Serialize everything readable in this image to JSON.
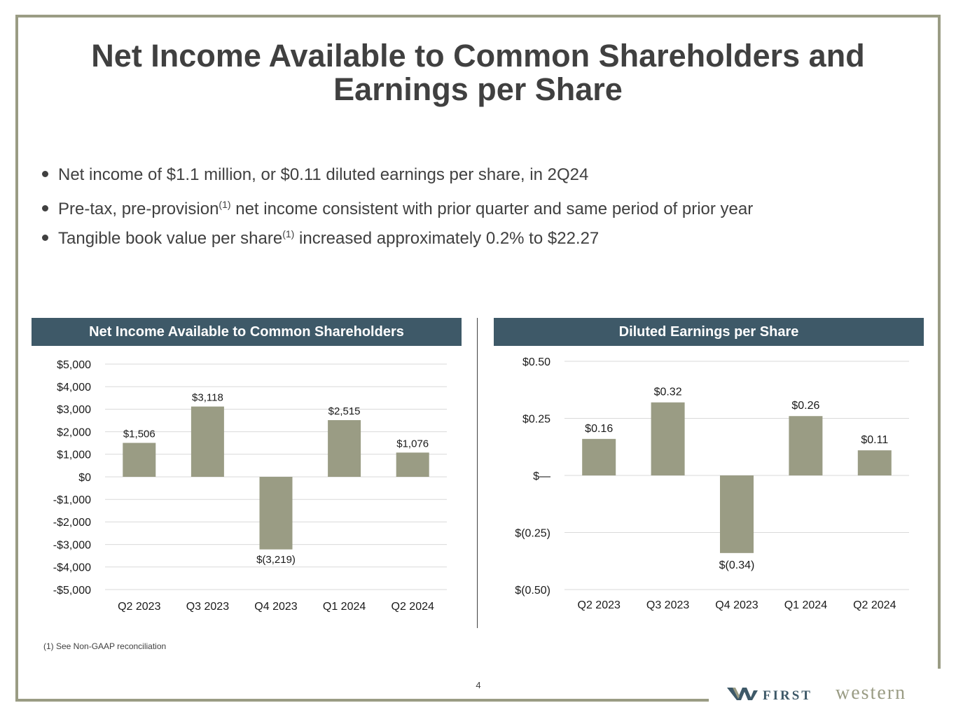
{
  "title": {
    "line1": "Net Income Available to Common Shareholders and",
    "line2": "Earnings per Share"
  },
  "bullets": [
    {
      "text": "Net income of $1.1 million, or $0.11 diluted earnings per share, in 2Q24"
    },
    {
      "pre": "Pre-tax, pre-provision",
      "sup": "(1)",
      "post": " net income consistent with prior quarter and same period of prior year"
    },
    {
      "pre": "Tangible book value per share",
      "sup": "(1)",
      "post": " increased approximately 0.2% to $22.27"
    }
  ],
  "colors": {
    "bar": "#9a9c84",
    "header": "#3e5968",
    "frame": "#9a9c84",
    "grid": "#d9d9d9",
    "text": "#404040"
  },
  "chart_data": [
    {
      "type": "bar",
      "title": "Net Income Available to Common Shareholders",
      "categories": [
        "Q2 2023",
        "Q3 2023",
        "Q4 2023",
        "Q1 2024",
        "Q2 2024"
      ],
      "values": [
        1506,
        3118,
        -3219,
        2515,
        1076
      ],
      "data_labels": [
        "$1,506",
        "$3,118",
        "$(3,219)",
        "$2,515",
        "$1,076"
      ],
      "ylim": [
        -5000,
        5000
      ],
      "yticks": [
        5000,
        4000,
        3000,
        2000,
        1000,
        0,
        -1000,
        -2000,
        -3000,
        -4000,
        -5000
      ],
      "ytick_labels": [
        "$5,000",
        "$4,000",
        "$3,000",
        "$2,000",
        "$1,000",
        "$0",
        "-$1,000",
        "-$2,000",
        "-$3,000",
        "-$4,000",
        "-$5,000"
      ],
      "xlabel": "",
      "ylabel": "",
      "grid": true
    },
    {
      "type": "bar",
      "title": "Diluted Earnings per Share",
      "categories": [
        "Q2 2023",
        "Q3 2023",
        "Q4 2023",
        "Q1 2024",
        "Q2 2024"
      ],
      "values": [
        0.16,
        0.32,
        -0.34,
        0.26,
        0.11
      ],
      "data_labels": [
        "$0.16",
        "$0.32",
        "$(0.34)",
        "$0.26",
        "$0.11"
      ],
      "ylim": [
        -0.5,
        0.5
      ],
      "yticks": [
        0.5,
        0.25,
        0,
        -0.25,
        -0.5
      ],
      "ytick_labels": [
        "$0.50",
        "$0.25",
        "$—",
        "$(0.25)",
        "$(0.50)"
      ],
      "xlabel": "",
      "ylabel": "",
      "grid": true
    }
  ],
  "footnote": "(1)  See Non-GAAP reconciliation",
  "page_number": "4",
  "logo": {
    "first": "FIRST",
    "western": "western"
  }
}
